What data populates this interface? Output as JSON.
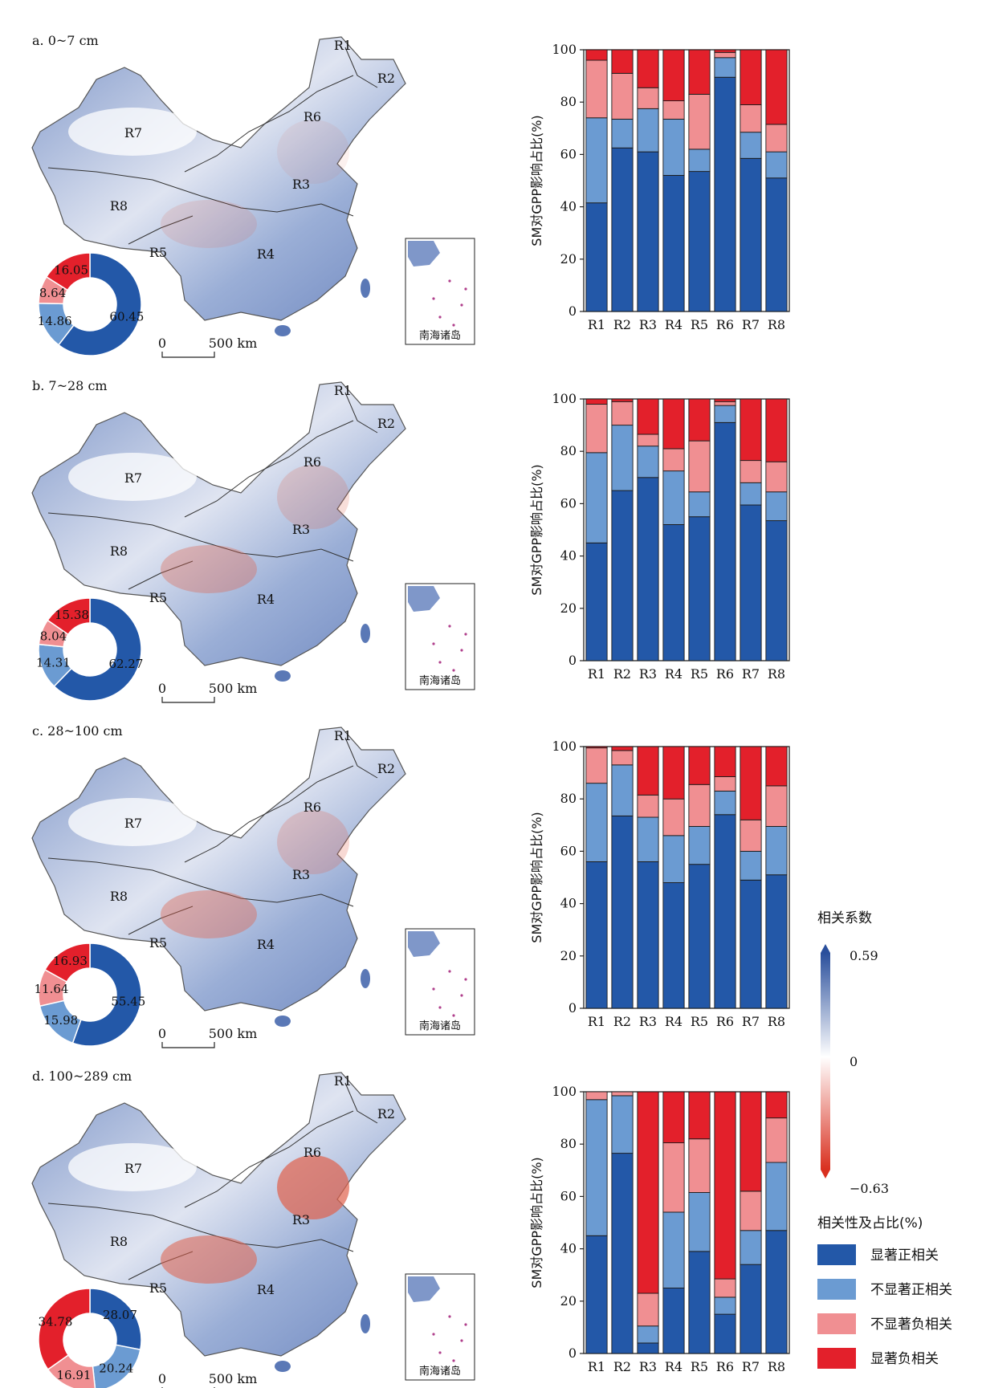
{
  "colors": {
    "sig_pos": "#2358a8",
    "insig_pos": "#6b9bd2",
    "insig_neg": "#f08f92",
    "sig_neg": "#e3202b",
    "cbar_top": "#2a4f9c",
    "cbar_bottom": "#d9301f"
  },
  "scale_bar_label": "500 km",
  "scale_bar_zero": "0",
  "inset_label": "南海诸岛",
  "panels": [
    {
      "label": "a. 0~7 cm",
      "map_labels": [
        "R1",
        "R2",
        "R6",
        "R7",
        "R3",
        "R8",
        "R4",
        "R5"
      ],
      "donut": {
        "values": [
          60.45,
          14.86,
          8.64,
          16.05
        ],
        "labels": [
          "60.45",
          "14.86",
          "8.64",
          "16.05"
        ]
      }
    },
    {
      "label": "b. 7~28 cm",
      "map_labels": [
        "R1",
        "R2",
        "R6",
        "R7",
        "R3",
        "R8",
        "R4",
        "R5"
      ],
      "donut": {
        "values": [
          62.27,
          14.31,
          8.04,
          15.38
        ],
        "labels": [
          "62.27",
          "14.31",
          "8.04",
          "15.38"
        ]
      }
    },
    {
      "label": "c. 28~100 cm",
      "map_labels": [
        "R1",
        "R2",
        "R6",
        "R7",
        "R3",
        "R8",
        "R4",
        "R5"
      ],
      "donut": {
        "values": [
          55.45,
          15.98,
          11.64,
          16.93
        ],
        "labels": [
          "55.45",
          "15.98",
          "11.64",
          "16.93"
        ]
      }
    },
    {
      "label": "d. 100~289 cm",
      "map_labels": [
        "R1",
        "R2",
        "R6",
        "R7",
        "R3",
        "R8",
        "R4",
        "R5"
      ],
      "donut": {
        "values": [
          28.07,
          20.24,
          16.91,
          34.78
        ],
        "labels": [
          "28.07",
          "20.24",
          "16.91",
          "34.78"
        ]
      }
    }
  ],
  "chart_data": [
    {
      "type": "bar",
      "stacked": true,
      "categories": [
        "R1",
        "R2",
        "R3",
        "R4",
        "R5",
        "R6",
        "R7",
        "R8"
      ],
      "ylabel": "SM对GPP影响占比(%)",
      "ylim": [
        0,
        100
      ],
      "yticks": [
        "0",
        "20",
        "40",
        "60",
        "80",
        "100"
      ],
      "series": [
        {
          "name": "显著正相关",
          "values": [
            41.5,
            62.5,
            61,
            52,
            53.5,
            89.5,
            58.5,
            51
          ]
        },
        {
          "name": "不显著正相关",
          "values": [
            32.5,
            11,
            16.5,
            21.5,
            8.5,
            7.5,
            10,
            10
          ]
        },
        {
          "name": "不显著负相关",
          "values": [
            22,
            17.5,
            8,
            7,
            21,
            2,
            10.5,
            10.5
          ]
        },
        {
          "name": "显著负相关",
          "values": [
            4,
            9,
            14.5,
            19.5,
            17,
            1,
            21,
            28.5
          ]
        }
      ]
    },
    {
      "type": "bar",
      "stacked": true,
      "categories": [
        "R1",
        "R2",
        "R3",
        "R4",
        "R5",
        "R6",
        "R7",
        "R8"
      ],
      "ylabel": "SM对GPP影响占比(%)",
      "ylim": [
        0,
        100
      ],
      "yticks": [
        "0",
        "20",
        "40",
        "60",
        "80",
        "100"
      ],
      "series": [
        {
          "name": "显著正相关",
          "values": [
            45,
            65,
            70,
            52,
            55,
            91,
            59.5,
            53.5
          ]
        },
        {
          "name": "不显著正相关",
          "values": [
            34.5,
            25,
            12,
            20.5,
            9.5,
            6.5,
            8.5,
            11
          ]
        },
        {
          "name": "不显著负相关",
          "values": [
            18.5,
            9,
            4.5,
            8.5,
            19.5,
            1.5,
            8.5,
            11.5
          ]
        },
        {
          "name": "显著负相关",
          "values": [
            2,
            1,
            13.5,
            19,
            16,
            1,
            23.5,
            24
          ]
        }
      ]
    },
    {
      "type": "bar",
      "stacked": true,
      "categories": [
        "R1",
        "R2",
        "R3",
        "R4",
        "R5",
        "R6",
        "R7",
        "R8"
      ],
      "ylabel": "SM对GPP影响占比(%)",
      "ylim": [
        0,
        100
      ],
      "yticks": [
        "0",
        "20",
        "40",
        "60",
        "80",
        "100"
      ],
      "series": [
        {
          "name": "显著正相关",
          "values": [
            56,
            73.5,
            56,
            48,
            55,
            74,
            49,
            51
          ]
        },
        {
          "name": "不显著正相关",
          "values": [
            30,
            19.5,
            17,
            18,
            14.5,
            9,
            11,
            18.5
          ]
        },
        {
          "name": "不显著负相关",
          "values": [
            13.5,
            5.5,
            8.5,
            14,
            16,
            5.5,
            12,
            15.5
          ]
        },
        {
          "name": "显著负相关",
          "values": [
            0.5,
            1.5,
            18.5,
            20,
            14.5,
            11.5,
            28,
            15
          ]
        }
      ]
    },
    {
      "type": "bar",
      "stacked": true,
      "categories": [
        "R1",
        "R2",
        "R3",
        "R4",
        "R5",
        "R6",
        "R7",
        "R8"
      ],
      "ylabel": "SM对GPP影响占比(%)",
      "ylim": [
        0,
        100
      ],
      "yticks": [
        "0",
        "20",
        "40",
        "60",
        "80",
        "100"
      ],
      "series": [
        {
          "name": "显著正相关",
          "values": [
            45,
            76.5,
            4,
            25,
            39,
            15,
            34,
            47
          ]
        },
        {
          "name": "不显著正相关",
          "values": [
            52,
            22,
            6.5,
            29,
            22.5,
            6.5,
            13,
            26
          ]
        },
        {
          "name": "不显著负相关",
          "values": [
            3,
            1.5,
            12.5,
            26.5,
            20.5,
            7,
            15,
            17
          ]
        },
        {
          "name": "显著负相关",
          "values": [
            0,
            0,
            77,
            19.5,
            18,
            71.5,
            38,
            10
          ]
        }
      ]
    }
  ],
  "colorbar": {
    "title": "相关系数",
    "max_label": "0.59",
    "mid_label": "0",
    "min_label": "−0.63"
  },
  "legend": {
    "title": "相关性及占比(%)",
    "items": [
      "显著正相关",
      "不显著正相关",
      "不显著负相关",
      "显著负相关"
    ]
  }
}
